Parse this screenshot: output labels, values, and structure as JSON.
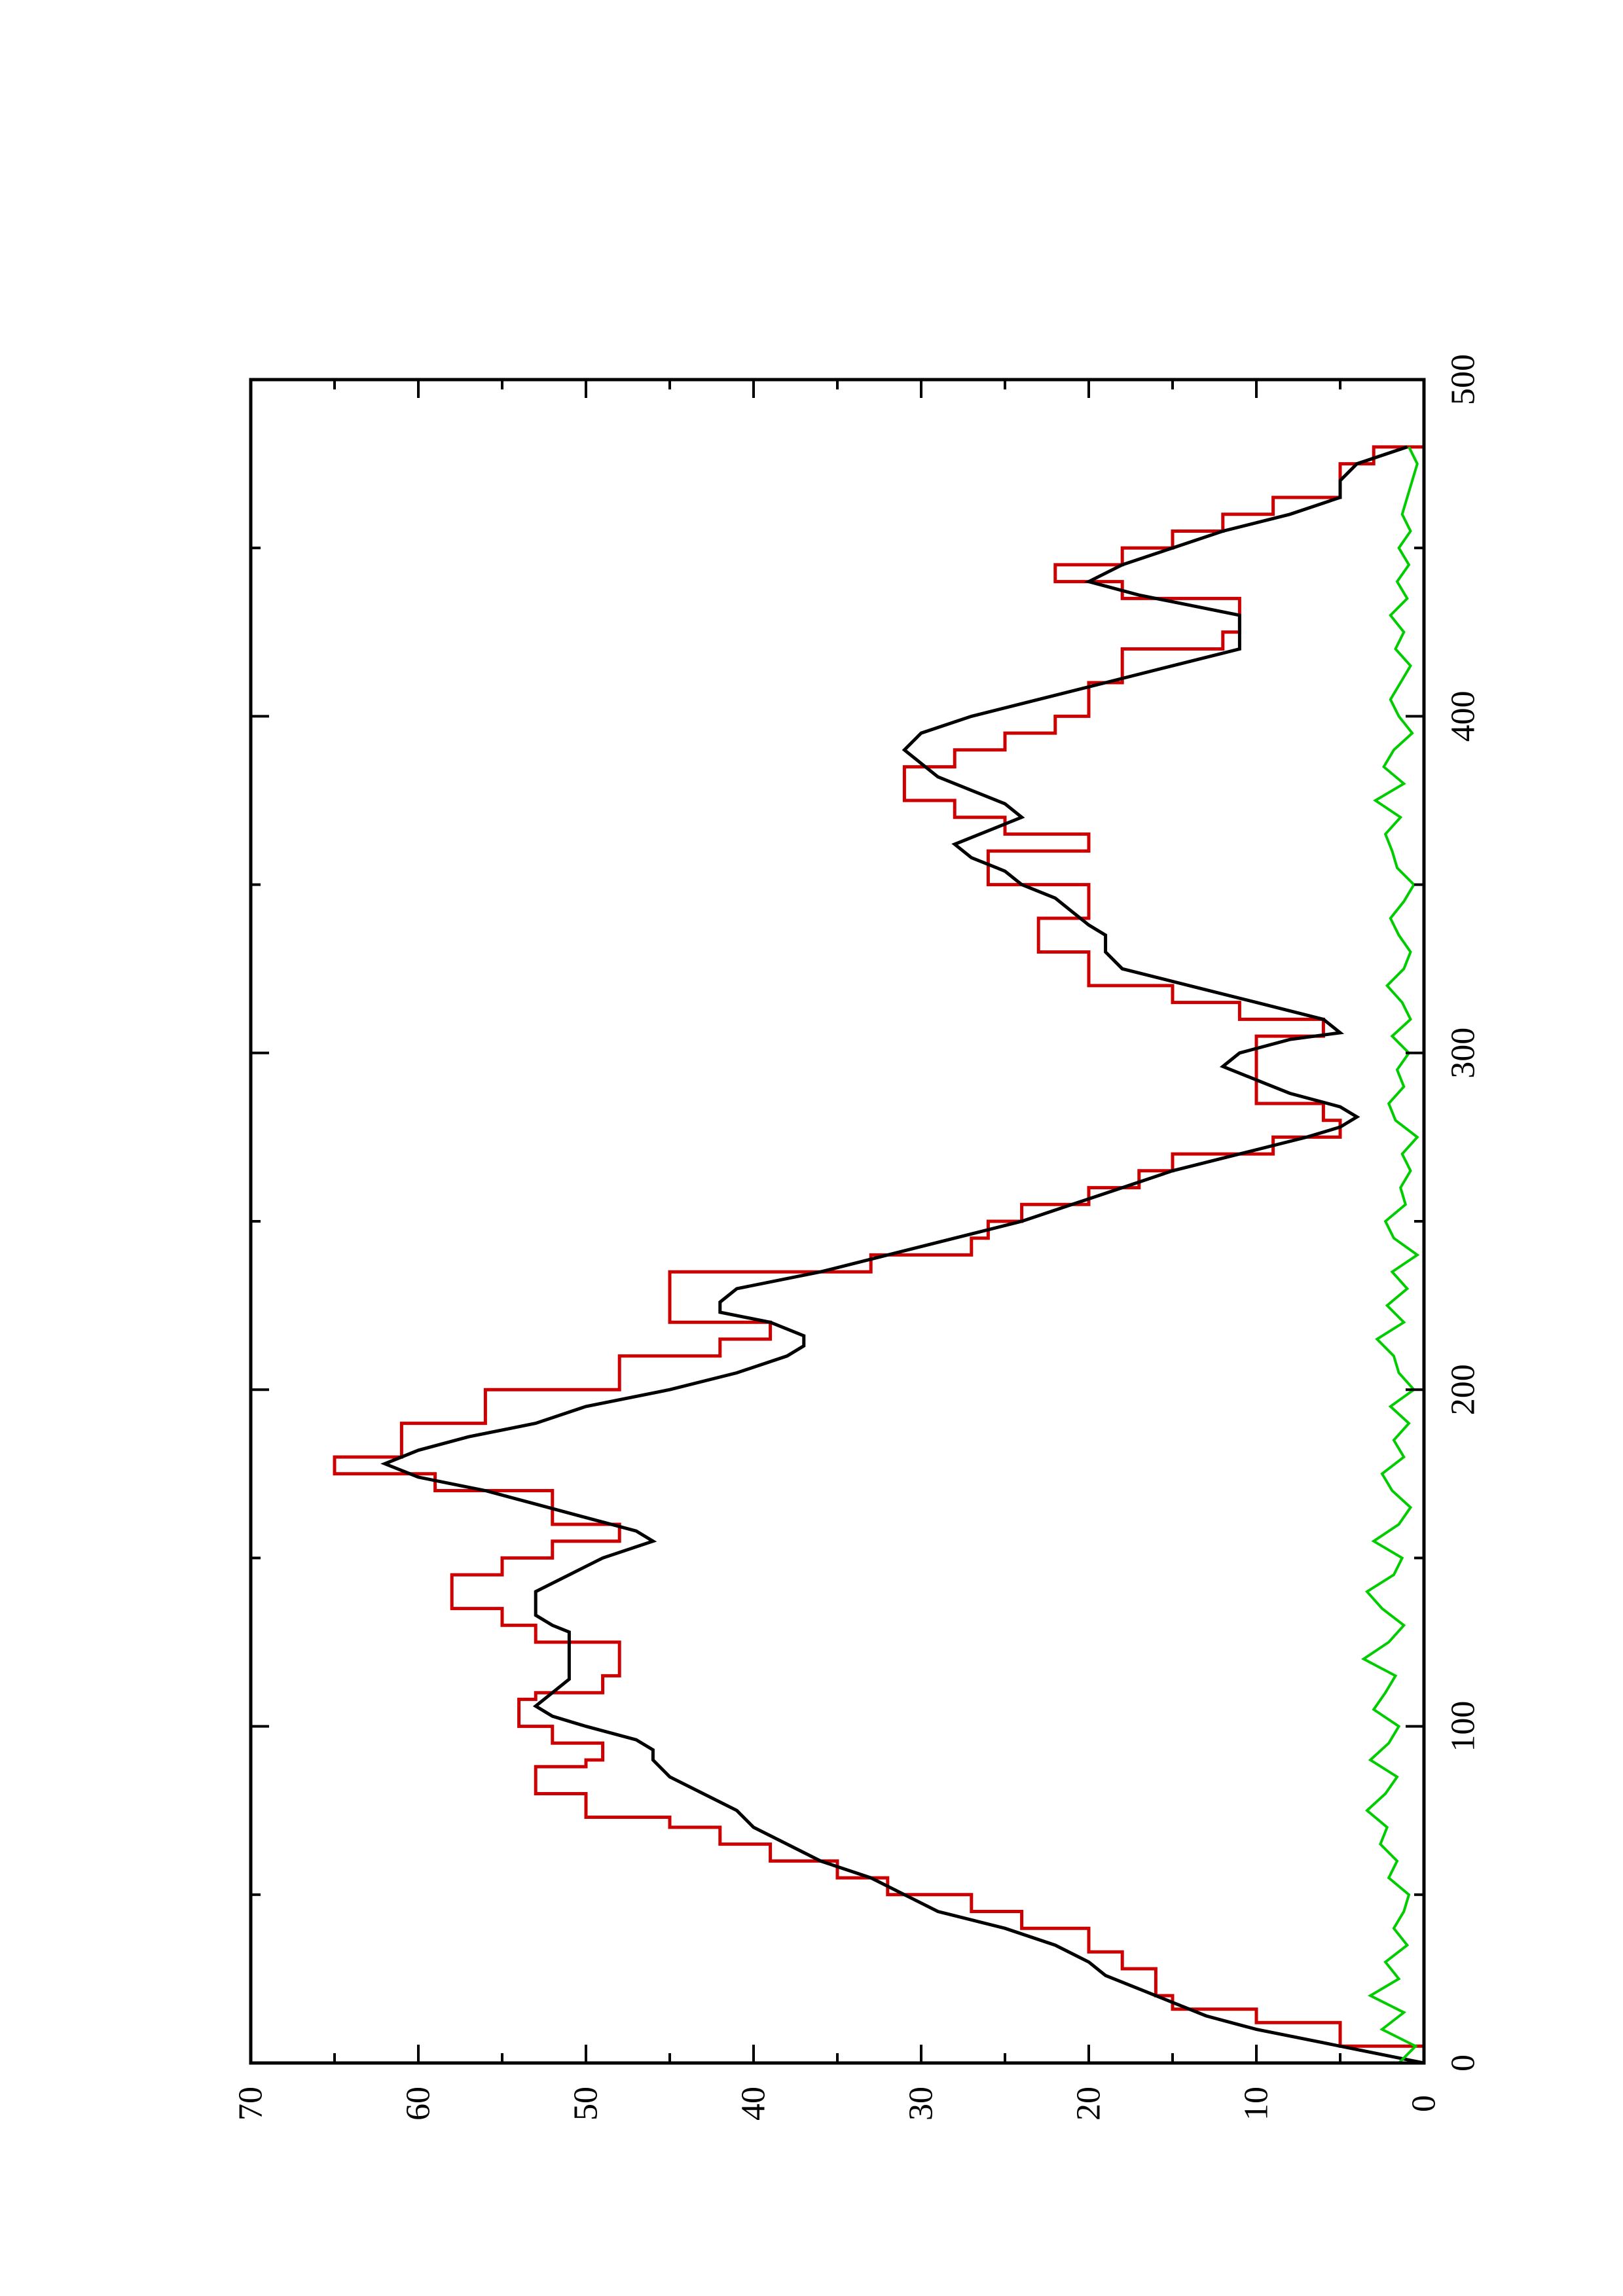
{
  "chart_data": {
    "type": "line",
    "orientation": "rotated 90 degrees counter-clockwise (x axis runs vertically, y axis horizontally)",
    "title": "",
    "xlabel": "",
    "ylabel": "",
    "xlim": [
      0,
      500
    ],
    "ylim": [
      0,
      70
    ],
    "x_ticks": [
      0,
      100,
      200,
      300,
      400,
      500
    ],
    "x_tick_labels": [
      "0",
      "100",
      "200",
      "300",
      "400",
      "500"
    ],
    "x_minor_ticks": [
      50,
      150,
      250,
      350,
      450
    ],
    "y_ticks": [
      0,
      10,
      20,
      30,
      40,
      50,
      60,
      70
    ],
    "y_tick_labels": [
      "0",
      "10",
      "20",
      "30",
      "40",
      "50",
      "60",
      "70"
    ],
    "y_minor_ticks": [
      5,
      15,
      25,
      35,
      45,
      55,
      65
    ],
    "grid": false,
    "legend": "none",
    "series": [
      {
        "color": "#cc0000",
        "style": "step",
        "x": [
          0,
          5,
          12,
          16,
          20,
          28,
          33,
          40,
          45,
          50,
          55,
          60,
          65,
          70,
          73,
          80,
          85,
          88,
          90,
          95,
          100,
          105,
          108,
          110,
          115,
          120,
          125,
          130,
          135,
          140,
          145,
          150,
          155,
          160,
          170,
          175,
          180,
          190,
          200,
          210,
          215,
          220,
          225,
          235,
          240,
          245,
          250,
          255,
          260,
          265,
          270,
          275,
          280,
          285,
          290,
          300,
          305,
          310,
          315,
          320,
          325,
          330,
          335,
          340,
          345,
          350,
          355,
          360,
          365,
          370,
          375,
          380,
          385,
          390,
          395,
          400,
          410,
          420,
          425,
          430,
          435,
          440,
          445,
          450,
          455,
          460,
          465,
          470,
          475,
          480
        ],
        "y": [
          0,
          5,
          10,
          15,
          16,
          18,
          20,
          24,
          27,
          32,
          35,
          39,
          42,
          45,
          50,
          53,
          53,
          50,
          49,
          52,
          54,
          54,
          53,
          49,
          48,
          48,
          53,
          55,
          58,
          58,
          55,
          52,
          48,
          52,
          59,
          65,
          61,
          56,
          48,
          42,
          39,
          45,
          45,
          33,
          27,
          26,
          24,
          20,
          17,
          15,
          9,
          5,
          6,
          10,
          10,
          10,
          6,
          11,
          15,
          20,
          20,
          23,
          23,
          20,
          20,
          26,
          26,
          20,
          25,
          28,
          31,
          31,
          28,
          25,
          22,
          20,
          18,
          12,
          11,
          11,
          18,
          22,
          18,
          15,
          12,
          9,
          5,
          5,
          3,
          0
        ]
      },
      {
        "color": "#000000",
        "style": "line",
        "x": [
          0,
          3,
          6,
          10,
          14,
          18,
          22,
          26,
          30,
          35,
          40,
          45,
          50,
          55,
          60,
          65,
          70,
          75,
          80,
          85,
          90,
          93,
          96,
          100,
          103,
          106,
          110,
          114,
          118,
          122,
          126,
          128,
          130,
          133,
          136,
          140,
          145,
          150,
          155,
          158,
          162,
          166,
          170,
          174,
          178,
          182,
          186,
          190,
          195,
          200,
          205,
          210,
          213,
          216,
          220,
          223,
          226,
          230,
          235,
          240,
          245,
          250,
          255,
          260,
          265,
          270,
          275,
          278,
          281,
          284,
          288,
          292,
          296,
          300,
          304,
          306,
          310,
          315,
          320,
          325,
          330,
          335,
          338,
          342,
          346,
          350,
          354,
          358,
          362,
          366,
          370,
          374,
          378,
          382,
          386,
          390,
          395,
          400,
          405,
          410,
          415,
          420,
          425,
          430,
          433,
          436,
          440,
          445,
          450,
          455,
          460,
          465,
          470,
          475,
          480
        ],
        "y": [
          0,
          3,
          6,
          10,
          13,
          15,
          17,
          19,
          20,
          22,
          25,
          29,
          31,
          33,
          36,
          38,
          40,
          41,
          43,
          45,
          46,
          46,
          47,
          50,
          52,
          53,
          52,
          51,
          51,
          51,
          51,
          51,
          52,
          53,
          53,
          53,
          51,
          49,
          46,
          47,
          50,
          53,
          56,
          60,
          62,
          60,
          57,
          53,
          50,
          45,
          41,
          38,
          37,
          37,
          39,
          42,
          42,
          41,
          36,
          32,
          28,
          24,
          21,
          18,
          15,
          11,
          7,
          5,
          4,
          5,
          8,
          10,
          12,
          11,
          8,
          5,
          6,
          10,
          14,
          18,
          19,
          19,
          20,
          21,
          22,
          24,
          25,
          27,
          28,
          26,
          24,
          25,
          27,
          29,
          30,
          31,
          30,
          27,
          23,
          19,
          15,
          11,
          11,
          11,
          14,
          17,
          20,
          18,
          15,
          12,
          8,
          5,
          5,
          4,
          1
        ]
      },
      {
        "color": "#00cc00",
        "style": "line",
        "noise_band": [
          0,
          4
        ],
        "x": [
          0,
          5,
          10,
          15,
          20,
          25,
          30,
          35,
          40,
          45,
          50,
          55,
          60,
          65,
          70,
          75,
          80,
          85,
          90,
          95,
          100,
          105,
          110,
          115,
          120,
          125,
          130,
          135,
          140,
          145,
          150,
          155,
          160,
          165,
          170,
          175,
          180,
          185,
          190,
          195,
          200,
          205,
          210,
          215,
          220,
          225,
          230,
          235,
          240,
          245,
          250,
          255,
          260,
          265,
          270,
          275,
          280,
          285,
          290,
          295,
          300,
          305,
          310,
          315,
          320,
          325,
          330,
          335,
          340,
          345,
          350,
          355,
          360,
          365,
          370,
          375,
          380,
          385,
          390,
          395,
          400,
          405,
          410,
          415,
          420,
          425,
          430,
          435,
          440,
          445,
          450,
          455,
          460,
          465,
          470,
          475,
          480
        ],
        "y": [
          1.5,
          0.5,
          2.5,
          1.2,
          3.2,
          1.5,
          2.3,
          1.0,
          1.8,
          1.2,
          0.9,
          2.1,
          1.6,
          2.6,
          2.2,
          3.4,
          2.3,
          1.6,
          3.2,
          2.1,
          1.5,
          3.0,
          2.3,
          1.7,
          3.6,
          2.1,
          1.2,
          2.5,
          3.4,
          1.8,
          1.3,
          3.0,
          1.5,
          0.8,
          1.9,
          2.5,
          1.2,
          1.8,
          0.9,
          2.0,
          0.6,
          1.5,
          1.8,
          2.8,
          1.2,
          2.2,
          1.0,
          1.9,
          0.4,
          1.8,
          2.3,
          1.1,
          1.4,
          0.8,
          1.3,
          0.4,
          1.7,
          2.1,
          1.2,
          1.6,
          0.9,
          1.9,
          0.8,
          1.3,
          2.2,
          1.2,
          0.8,
          1.5,
          2.0,
          1.2,
          0.6,
          1.6,
          1.9,
          2.3,
          1.4,
          2.9,
          1.2,
          2.4,
          1.8,
          0.7,
          1.5,
          2.0,
          1.4,
          0.8,
          1.7,
          1.2,
          2.0,
          1.0,
          1.6,
          0.9,
          1.5,
          0.8,
          1.3,
          1.0,
          0.7,
          0.4,
          0.9
        ]
      }
    ]
  }
}
